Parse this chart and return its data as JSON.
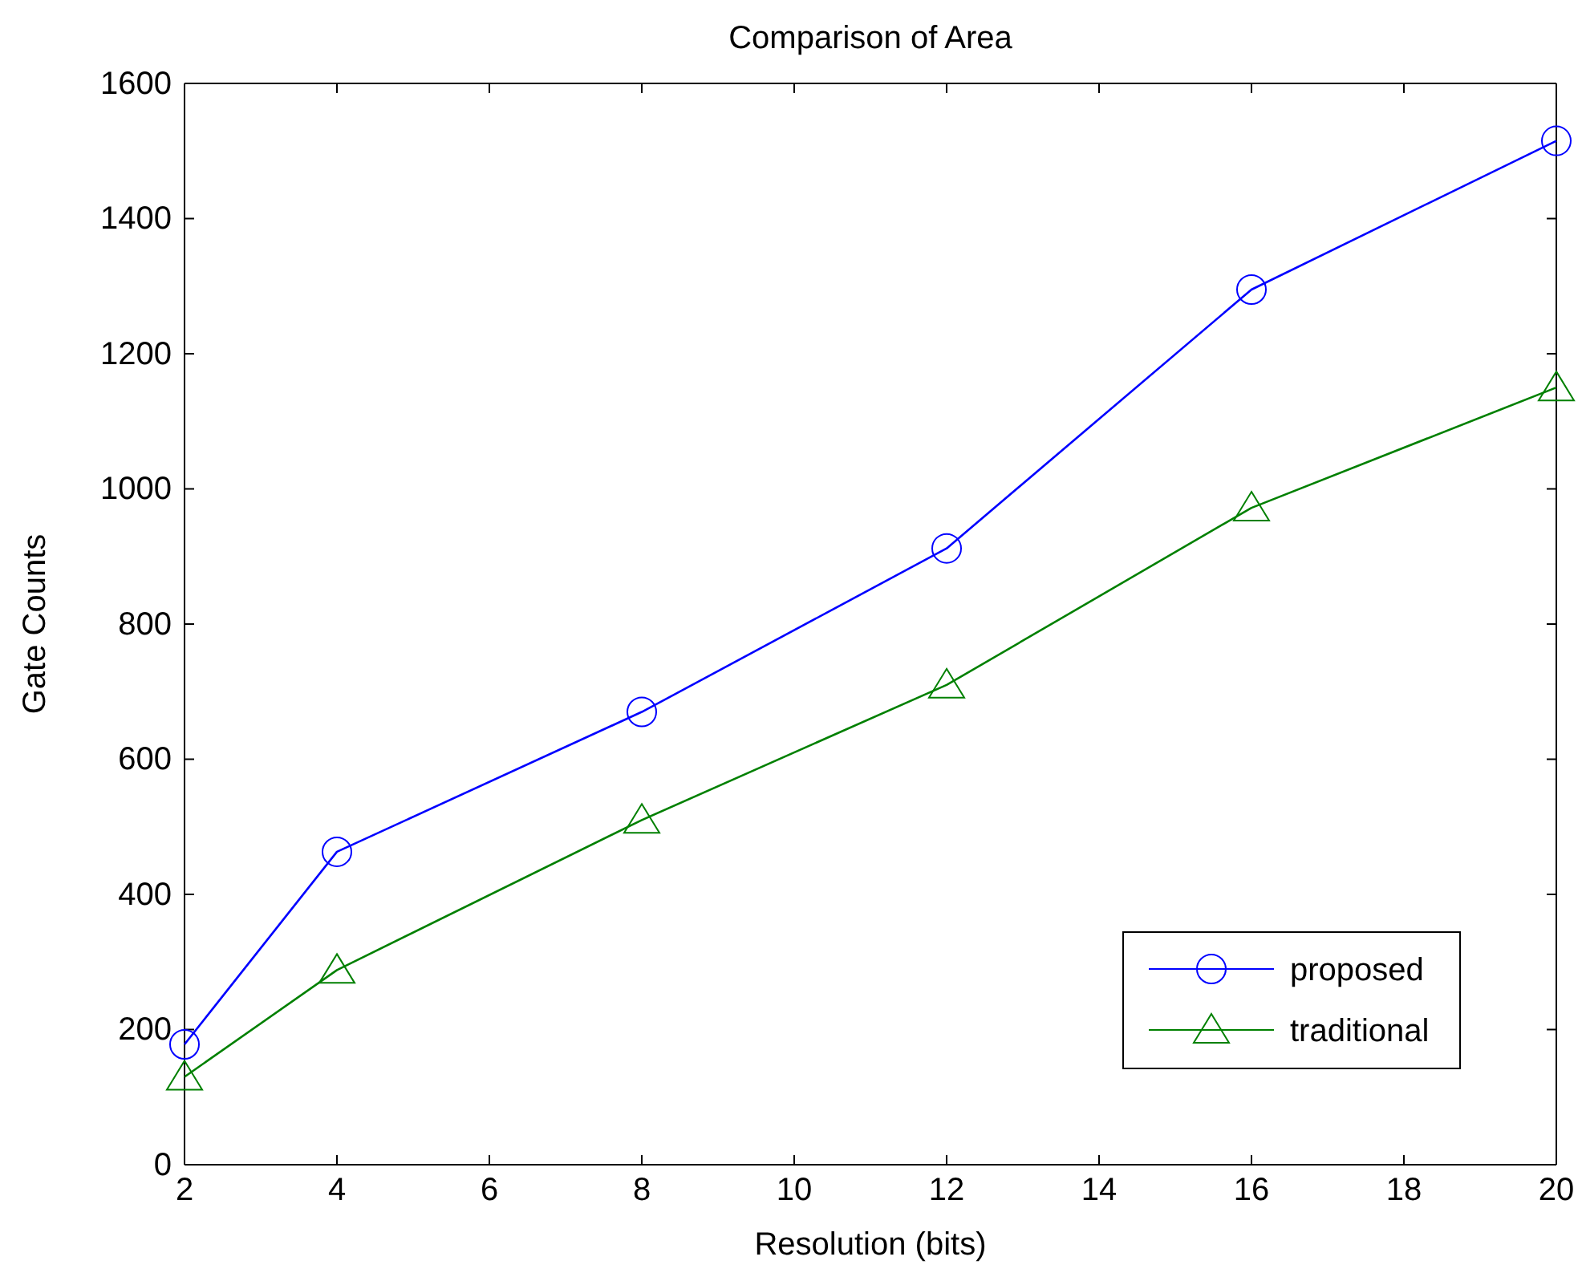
{
  "chart_data": {
    "type": "line",
    "title": "Comparison of Area",
    "xlabel": "Resolution (bits)",
    "ylabel": "Gate Counts",
    "x": [
      2,
      4,
      8,
      12,
      16,
      20
    ],
    "series": [
      {
        "name": "proposed",
        "color": "#0000ff",
        "marker": "circle",
        "values": [
          178,
          463,
          670,
          912,
          1295,
          1515
        ]
      },
      {
        "name": "traditional",
        "color": "#008000",
        "marker": "triangle",
        "values": [
          130,
          288,
          510,
          710,
          972,
          1150
        ]
      }
    ],
    "xlim": [
      2,
      20
    ],
    "xticks": [
      2,
      4,
      6,
      8,
      10,
      12,
      14,
      16,
      18,
      20
    ],
    "ylim": [
      0,
      1600
    ],
    "yticks": [
      0,
      200,
      400,
      600,
      800,
      1000,
      1200,
      1400,
      1600
    ],
    "grid": false,
    "legend": "bottom right",
    "line_style": "solid"
  }
}
